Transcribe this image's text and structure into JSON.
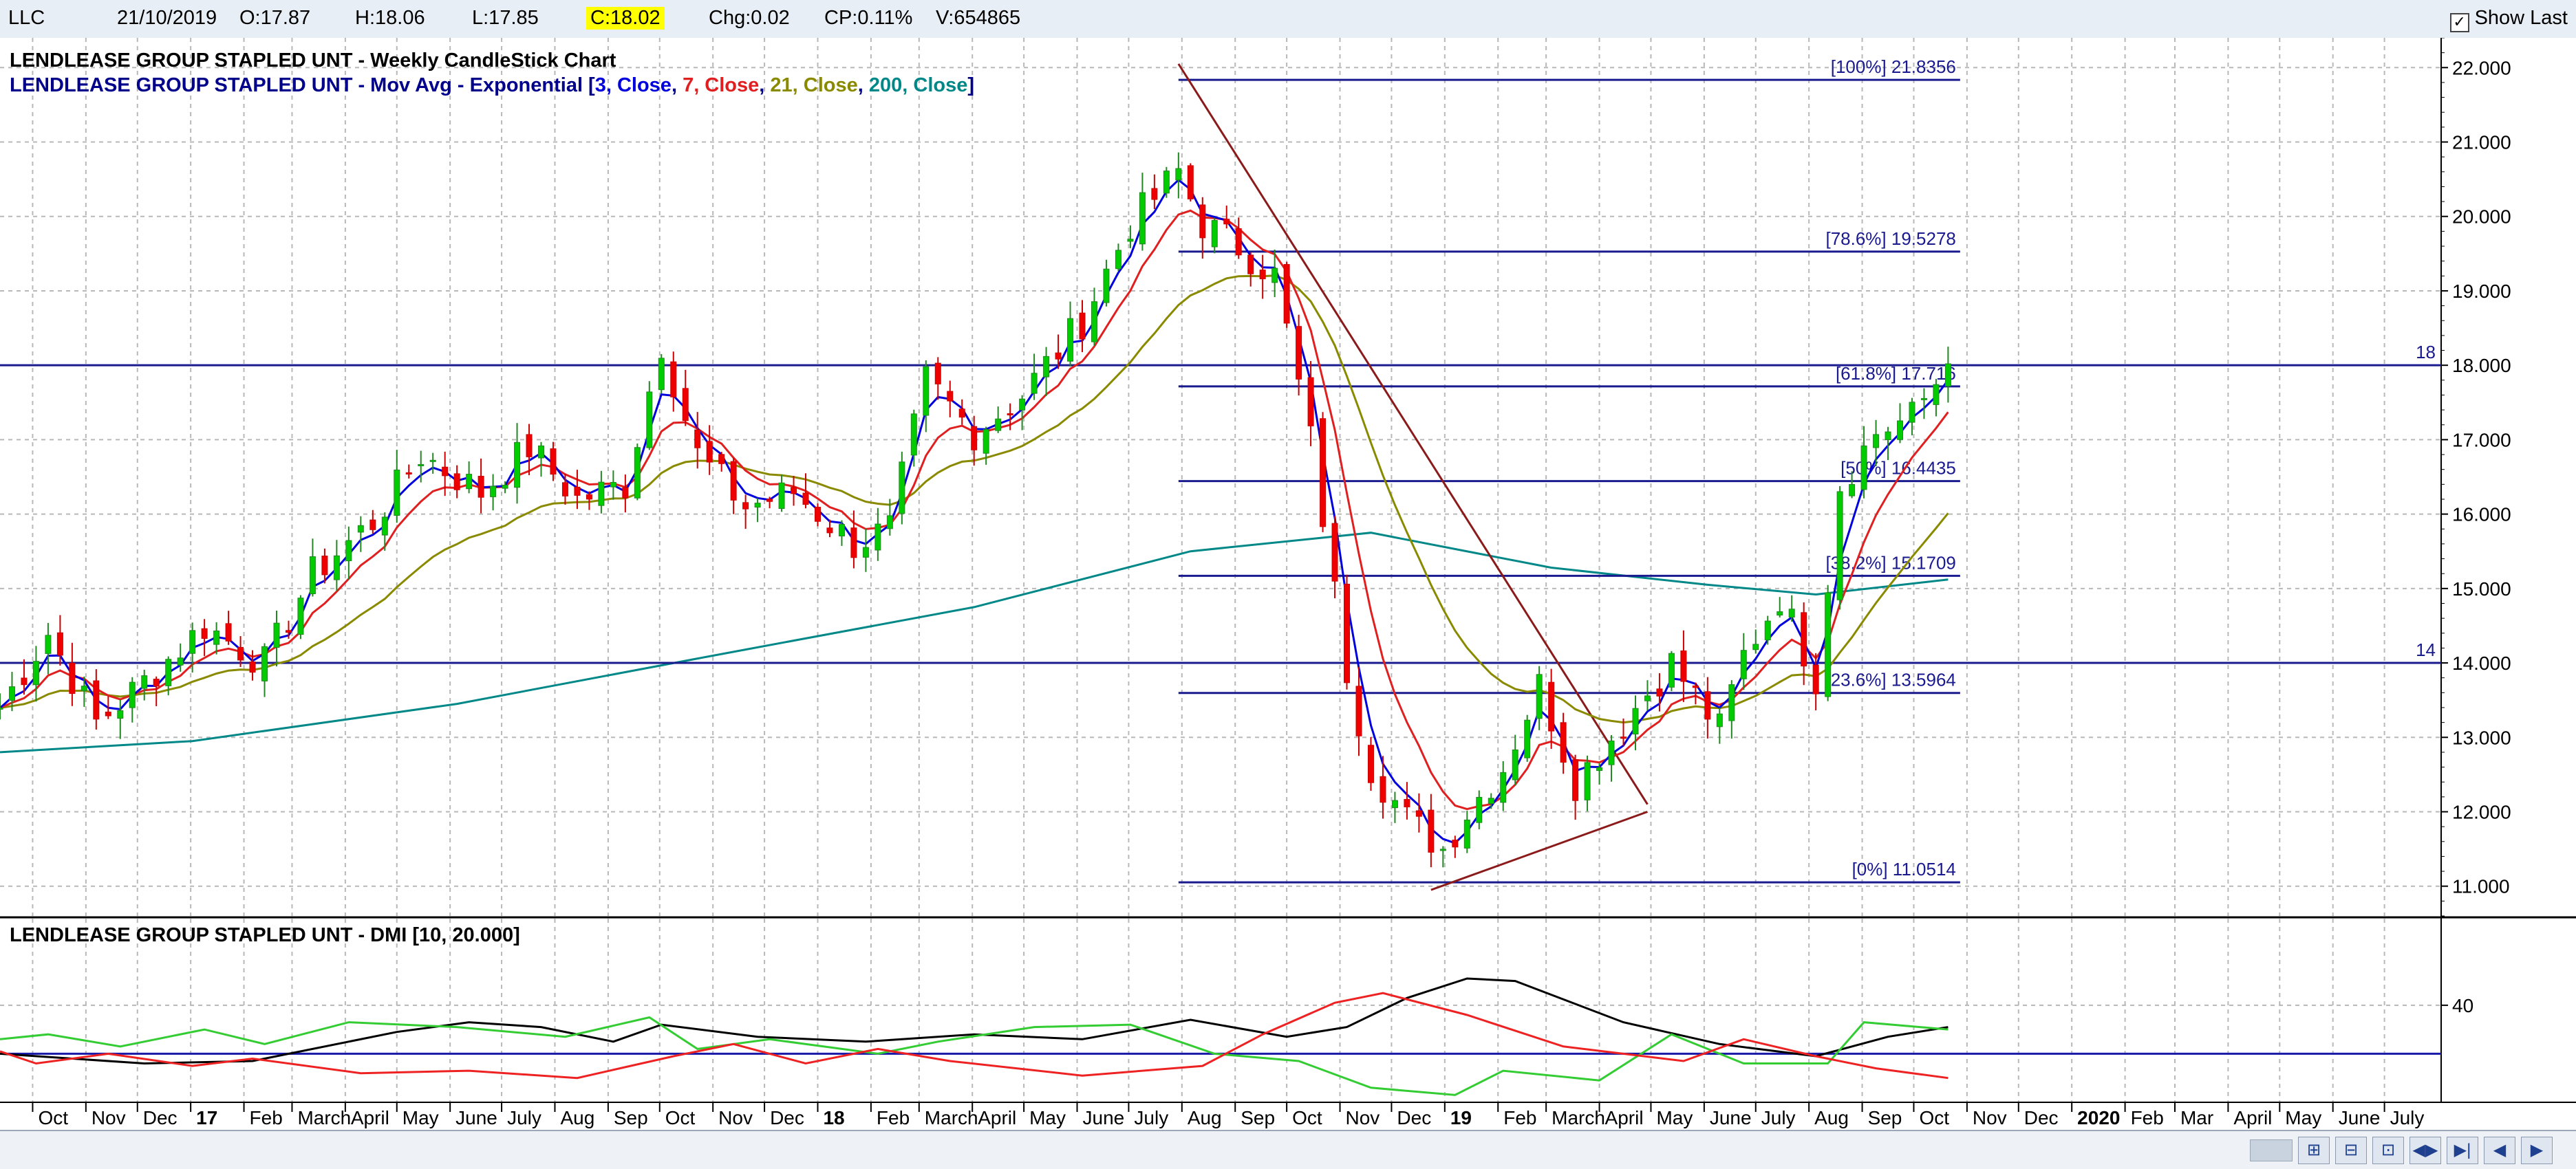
{
  "header": {
    "symbol": "LLC",
    "date": "21/10/2019",
    "open": "O:17.87",
    "high": "H:18.06",
    "low": "L:17.85",
    "close": "C:18.02",
    "change": "Chg:0.02",
    "change_pct": "CP:0.11%",
    "volume": "V:654865",
    "show_last_label": "Show Last",
    "show_last_checked": true
  },
  "main_panel": {
    "title": "LENDLEASE GROUP STAPLED UNT - Weekly CandleStick Chart",
    "ma_title_prefix": "LENDLEASE GROUP STAPLED UNT - Mov Avg - Exponential [",
    "ma_title_parts": [
      {
        "text": "3, Close",
        "color": "#0000dd"
      },
      {
        "text": ", ",
        "color": "#00008b"
      },
      {
        "text": "7, Close",
        "color": "#e02020"
      },
      {
        "text": ", ",
        "color": "#00008b"
      },
      {
        "text": "21, Close",
        "color": "#8a8a00"
      },
      {
        "text": ", ",
        "color": "#00008b"
      },
      {
        "text": "200, Close",
        "color": "#008888"
      }
    ],
    "ma_title_suffix": "]"
  },
  "dmi_panel": {
    "title": "LENDLEASE GROUP STAPLED UNT - DMI [10, 20.000]"
  },
  "colors": {
    "up": "#00cc00",
    "down": "#ee0000",
    "ema3": "#0000dd",
    "ema7": "#e02020",
    "ema21": "#8a8a00",
    "ema200": "#008888",
    "fib": "#1a1a8f",
    "trend": "#8b1a1a",
    "hline": "#1a1a8f",
    "adx": "#000000",
    "plus_di": "#33cc33",
    "minus_di": "#ee2222"
  },
  "chart_data": [
    {
      "type": "candlestick",
      "title": "LENDLEASE GROUP STAPLED UNT - Weekly CandleStick Chart",
      "x_unit": "week",
      "x_range": [
        "2016-09-12",
        "2020-08-03"
      ],
      "y_ticks": [
        "11.000",
        "12.000",
        "13.000",
        "14.000",
        "15.000",
        "16.000",
        "17.000",
        "18.000",
        "19.000",
        "20.000",
        "21.000",
        "22.000"
      ],
      "ylim": [
        10.6,
        22.4
      ],
      "x_tick_labels": [
        "Oct",
        "Nov",
        "Dec",
        "17",
        "Feb",
        "March",
        "April",
        "May",
        "June",
        "July",
        "Aug",
        "Sep",
        "Oct",
        "Nov",
        "Dec",
        "18",
        "Feb",
        "March",
        "April",
        "May",
        "June",
        "July",
        "Aug",
        "Sep",
        "Oct",
        "Nov",
        "Dec",
        "19",
        "Feb",
        "March",
        "April",
        "May",
        "June",
        "July",
        "Aug",
        "Sep",
        "Oct",
        "Nov",
        "Dec",
        "2020",
        "Feb",
        "Mar",
        "April",
        "May",
        "June",
        "July"
      ],
      "x_tick_dates": [
        "2016-10-01",
        "2016-11-01",
        "2016-12-01",
        "2017-01-01",
        "2017-02-01",
        "2017-03-01",
        "2017-04-01",
        "2017-05-01",
        "2017-06-01",
        "2017-07-01",
        "2017-08-01",
        "2017-09-01",
        "2017-10-01",
        "2017-11-01",
        "2017-12-01",
        "2018-01-01",
        "2018-02-01",
        "2018-03-01",
        "2018-04-01",
        "2018-05-01",
        "2018-06-01",
        "2018-07-01",
        "2018-08-01",
        "2018-09-01",
        "2018-10-01",
        "2018-11-01",
        "2018-12-01",
        "2019-01-01",
        "2019-02-01",
        "2019-03-01",
        "2019-04-01",
        "2019-05-01",
        "2019-06-01",
        "2019-07-01",
        "2019-08-01",
        "2019-09-01",
        "2019-10-01",
        "2019-11-01",
        "2019-12-01",
        "2020-01-01",
        "2020-02-01",
        "2020-03-01",
        "2020-04-01",
        "2020-05-01",
        "2020-06-01",
        "2020-07-01"
      ],
      "bold_tick_labels": [
        "17",
        "18",
        "19",
        "2020"
      ],
      "price_anchors": {
        "date": [
          "2016-09-12",
          "2016-10-10",
          "2016-11-07",
          "2016-11-28",
          "2017-01-09",
          "2017-02-13",
          "2017-03-13",
          "2017-04-17",
          "2017-05-15",
          "2017-06-19",
          "2017-07-17",
          "2017-08-14",
          "2017-09-11",
          "2017-10-02",
          "2017-10-23",
          "2017-11-20",
          "2017-12-18",
          "2018-01-22",
          "2018-02-12",
          "2018-03-05",
          "2018-04-02",
          "2018-04-30",
          "2018-06-04",
          "2018-07-02",
          "2018-07-30",
          "2018-08-13",
          "2018-09-03",
          "2018-09-24",
          "2018-10-15",
          "2018-11-05",
          "2018-11-19",
          "2018-12-10",
          "2018-12-31",
          "2019-01-14",
          "2019-02-04",
          "2019-02-25",
          "2019-03-18",
          "2019-04-15",
          "2019-05-13",
          "2019-06-10",
          "2019-06-24",
          "2019-07-15",
          "2019-08-05",
          "2019-08-19",
          "2019-09-09",
          "2019-09-30",
          "2019-10-21"
        ],
        "close": [
          13.4,
          14.4,
          13.2,
          13.6,
          14.5,
          14.0,
          15.2,
          15.9,
          16.8,
          16.3,
          16.9,
          16.2,
          16.4,
          18.3,
          16.8,
          16.1,
          16.3,
          15.6,
          15.8,
          17.8,
          17.1,
          17.6,
          18.6,
          19.9,
          20.6,
          19.9,
          19.6,
          19.2,
          17.0,
          13.9,
          12.6,
          11.9,
          11.5,
          12.0,
          12.6,
          13.7,
          12.4,
          13.2,
          14.0,
          13.1,
          14.1,
          14.9,
          13.8,
          16.4,
          17.1,
          17.3,
          18.02
        ]
      },
      "moving_averages": [
        {
          "name": "3, Close",
          "period": 3
        },
        {
          "name": "7, Close",
          "period": 7
        },
        {
          "name": "21, Close",
          "period": 21
        },
        {
          "name": "200, Close",
          "period": 200,
          "curve": {
            "date": [
              "2016-09-12",
              "2017-01-02",
              "2017-06-05",
              "2017-11-06",
              "2018-04-02",
              "2018-08-06",
              "2018-11-19",
              "2019-03-04",
              "2019-06-03",
              "2019-08-05",
              "2019-10-21"
            ],
            "value": [
              12.8,
              12.95,
              13.45,
              14.12,
              14.75,
              15.5,
              15.75,
              15.28,
              15.05,
              14.92,
              15.12
            ]
          }
        }
      ],
      "fibonacci": {
        "start_date": "2018-07-30",
        "end_date": "2019-10-28",
        "levels": [
          {
            "label": "[100%] 21.8356",
            "value": 21.8356
          },
          {
            "label": "[78.6%] 19.5278",
            "value": 19.5278
          },
          {
            "label": "[61.8%] 17.716",
            "value": 17.716
          },
          {
            "label": "[50%] 16.4435",
            "value": 16.4435
          },
          {
            "label": "[38.2%] 15.1709",
            "value": 15.1709
          },
          {
            "label": "[23.6%] 13.5964",
            "value": 13.5964
          },
          {
            "label": "[0%] 11.0514",
            "value": 11.0514
          }
        ]
      },
      "horizontal_lines": [
        {
          "value": 18,
          "label": "18"
        },
        {
          "value": 14,
          "label": "14"
        }
      ],
      "trend_lines": [
        {
          "x": [
            "2018-07-30",
            "2019-04-29"
          ],
          "y": [
            22.05,
            12.1
          ]
        },
        {
          "x": [
            "2018-12-24",
            "2019-04-29"
          ],
          "y": [
            10.95,
            12.0
          ]
        }
      ]
    },
    {
      "type": "line",
      "title": "LENDLEASE GROUP STAPLED UNT - DMI [10, 20.000]",
      "y_ticks": [
        "40"
      ],
      "ylim": [
        0,
        70
      ],
      "threshold": 20,
      "series": [
        {
          "key": "adx",
          "date": [
            "2016-09-12",
            "2016-12-05",
            "2017-02-06",
            "2017-05-01",
            "2017-06-12",
            "2017-07-24",
            "2017-09-04",
            "2017-10-02",
            "2017-11-27",
            "2018-01-29",
            "2018-04-02",
            "2018-06-04",
            "2018-08-06",
            "2018-10-01",
            "2018-11-05",
            "2018-12-10",
            "2019-01-14",
            "2019-02-11",
            "2019-04-15",
            "2019-06-10",
            "2019-08-05",
            "2019-09-16",
            "2019-10-21"
          ],
          "value": [
            20,
            16,
            17,
            29,
            33,
            31,
            25,
            32,
            27,
            25,
            28,
            26,
            34,
            27,
            31,
            43,
            51,
            50,
            33,
            24,
            19,
            27,
            31
          ]
        },
        {
          "key": "plus_di",
          "date": [
            "2016-09-12",
            "2016-10-10",
            "2016-11-21",
            "2017-01-09",
            "2017-02-13",
            "2017-04-03",
            "2017-06-05",
            "2017-08-07",
            "2017-09-25",
            "2017-10-23",
            "2017-12-04",
            "2018-02-05",
            "2018-03-12",
            "2018-05-07",
            "2018-07-02",
            "2018-08-20",
            "2018-10-08",
            "2018-11-19",
            "2019-01-07",
            "2019-02-04",
            "2019-04-01",
            "2019-05-13",
            "2019-06-24",
            "2019-08-12",
            "2019-09-02",
            "2019-10-21"
          ],
          "value": [
            26,
            28,
            23,
            30,
            24,
            33,
            31,
            27,
            35,
            22,
            26,
            20,
            25,
            31,
            32,
            20,
            17,
            6,
            3,
            13,
            9,
            28,
            16,
            16,
            33,
            30
          ]
        },
        {
          "key": "minus_di",
          "date": [
            "2016-09-12",
            "2016-10-03",
            "2016-11-14",
            "2017-01-02",
            "2017-02-06",
            "2017-04-10",
            "2017-06-12",
            "2017-08-14",
            "2017-10-09",
            "2017-11-13",
            "2017-12-25",
            "2018-02-05",
            "2018-03-19",
            "2018-06-04",
            "2018-08-13",
            "2018-09-17",
            "2018-10-29",
            "2018-11-26",
            "2019-01-14",
            "2019-03-11",
            "2019-05-20",
            "2019-06-24",
            "2019-08-05",
            "2019-09-09",
            "2019-10-21"
          ],
          "value": [
            21,
            16,
            20,
            15,
            18,
            12,
            13,
            10,
            19,
            24,
            16,
            22,
            17,
            11,
            15,
            28,
            41,
            45,
            36,
            23,
            17,
            26,
            19,
            14,
            10
          ]
        }
      ]
    }
  ]
}
